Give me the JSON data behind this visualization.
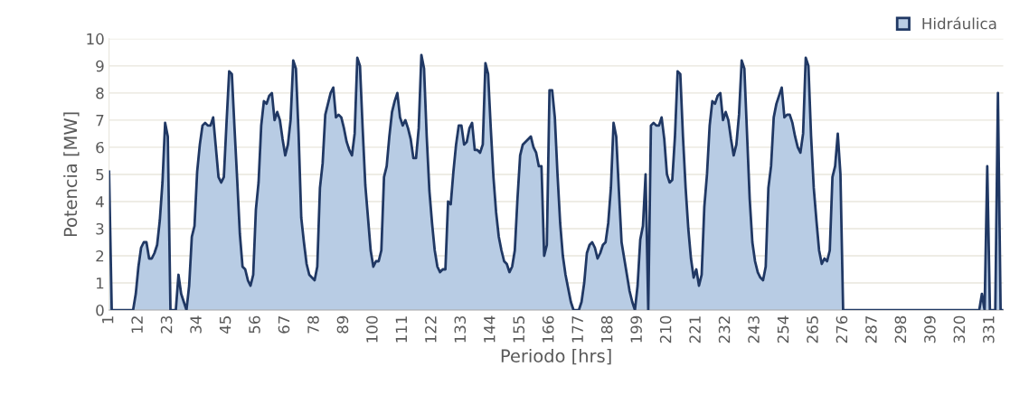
{
  "chart_data": {
    "type": "area",
    "xlabel": "Periodo [hrs]",
    "ylabel": "Potencia [MW]",
    "categories": [
      "1",
      null,
      null,
      null,
      null,
      null,
      null,
      null,
      null,
      null,
      null,
      "12",
      null,
      null,
      null,
      null,
      null,
      null,
      null,
      null,
      null,
      null,
      "23",
      null,
      null,
      null,
      null,
      null,
      null,
      null,
      null,
      null,
      null,
      "34",
      null,
      null,
      null,
      null,
      null,
      null,
      null,
      null,
      null,
      null,
      "45",
      null,
      null,
      null,
      null,
      null,
      null,
      null,
      null,
      null,
      null,
      "56",
      null,
      null,
      null,
      null,
      null,
      null,
      null,
      null,
      null,
      null,
      "67",
      null,
      null,
      null,
      null,
      null,
      null,
      null,
      null,
      null,
      null,
      "78",
      null,
      null,
      null,
      null,
      null,
      null,
      null,
      null,
      null,
      null,
      "89",
      null,
      null,
      null,
      null,
      null,
      null,
      null,
      null,
      null,
      null,
      "100",
      null,
      null,
      null,
      null,
      null,
      null,
      null,
      null,
      null,
      null,
      "111",
      null,
      null,
      null,
      null,
      null,
      null,
      null,
      null,
      null,
      null,
      "122",
      null,
      null,
      null,
      null,
      null,
      null,
      null,
      null,
      null,
      null,
      "133",
      null,
      null,
      null,
      null,
      null,
      null,
      null,
      null,
      null,
      null,
      "144",
      null,
      null,
      null,
      null,
      null,
      null,
      null,
      null,
      null,
      null,
      "155",
      null,
      null,
      null,
      null,
      null,
      null,
      null,
      null,
      null,
      null,
      "166",
      null,
      null,
      null,
      null,
      null,
      null,
      null,
      null,
      null,
      null,
      "177",
      null,
      null,
      null,
      null,
      null,
      null,
      null,
      null,
      null,
      null,
      "188",
      null,
      null,
      null,
      null,
      null,
      null,
      null,
      null,
      null,
      null,
      "199",
      null,
      null,
      null,
      null,
      null,
      null,
      null,
      null,
      null,
      null,
      "210",
      null,
      null,
      null,
      null,
      null,
      null,
      null,
      null,
      null,
      null,
      "221",
      null,
      null,
      null,
      null,
      null,
      null,
      null,
      null,
      null,
      null,
      "232",
      null,
      null,
      null,
      null,
      null,
      null,
      null,
      null,
      null,
      null,
      "243",
      null,
      null,
      null,
      null,
      null,
      null,
      null,
      null,
      null,
      null,
      "254",
      null,
      null,
      null,
      null,
      null,
      null,
      null,
      null,
      null,
      null,
      "265",
      null,
      null,
      null,
      null,
      null,
      null,
      null,
      null,
      null,
      null,
      "276",
      null,
      null,
      null,
      null,
      null,
      null,
      null,
      null,
      null,
      null,
      "287",
      null,
      null,
      null,
      null,
      null,
      null,
      null,
      null,
      null,
      null,
      "298",
      null,
      null,
      null,
      null,
      null,
      null,
      null,
      null,
      null,
      null,
      "309",
      null,
      null,
      null,
      null,
      null,
      null,
      null,
      null,
      null,
      null,
      "320",
      null,
      null,
      null,
      null,
      null,
      null,
      null,
      null,
      null,
      null,
      "331",
      null,
      null,
      null,
      null,
      null
    ],
    "series": [
      {
        "name": "Hidráulica",
        "color": "#b8cce4",
        "values": [
          5.1,
          0,
          0,
          0,
          0,
          0,
          0,
          0,
          0,
          0,
          0.6,
          1.6,
          2.3,
          2.5,
          2.5,
          1.9,
          1.9,
          2.1,
          2.4,
          3.3,
          4.7,
          6.9,
          6.4,
          0,
          0,
          0,
          1.3,
          0.6,
          0.3,
          0,
          0.9,
          2.7,
          3.1,
          5.1,
          6.1,
          6.8,
          6.9,
          6.8,
          6.8,
          7.1,
          6.0,
          4.9,
          4.7,
          4.9,
          6.9,
          8.8,
          8.7,
          6.7,
          4.8,
          2.8,
          1.6,
          1.5,
          1.1,
          0.9,
          1.3,
          3.7,
          4.7,
          6.8,
          7.7,
          7.6,
          7.9,
          8.0,
          7.0,
          7.3,
          7.0,
          6.3,
          5.7,
          6.1,
          7.0,
          9.2,
          8.9,
          6.5,
          3.4,
          2.5,
          1.7,
          1.3,
          1.2,
          1.1,
          1.6,
          4.5,
          5.4,
          7.2,
          7.6,
          8.0,
          8.2,
          7.1,
          7.2,
          7.1,
          6.7,
          6.2,
          5.9,
          5.7,
          6.5,
          9.3,
          9.0,
          6.7,
          4.6,
          3.4,
          2.2,
          1.6,
          1.8,
          1.8,
          2.2,
          4.9,
          5.3,
          6.4,
          7.3,
          7.7,
          8.0,
          7.1,
          6.8,
          7.0,
          6.7,
          6.3,
          5.6,
          5.6,
          6.7,
          9.4,
          8.9,
          6.4,
          4.4,
          3.2,
          2.2,
          1.6,
          1.4,
          1.5,
          1.5,
          4.0,
          3.9,
          5.1,
          6.1,
          6.8,
          6.8,
          6.1,
          6.2,
          6.7,
          6.9,
          5.9,
          5.9,
          5.8,
          6.1,
          9.1,
          8.7,
          6.7,
          4.9,
          3.6,
          2.7,
          2.2,
          1.8,
          1.7,
          1.4,
          1.6,
          2.2,
          4.1,
          5.7,
          6.1,
          6.2,
          6.3,
          6.4,
          6.0,
          5.8,
          5.3,
          5.3,
          2.0,
          2.4,
          8.1,
          8.1,
          7.1,
          5.0,
          3.2,
          2.0,
          1.3,
          0.8,
          0.3,
          0,
          0,
          0,
          0.3,
          1.0,
          2.1,
          2.4,
          2.5,
          2.3,
          1.9,
          2.1,
          2.4,
          2.5,
          3.2,
          4.5,
          6.9,
          6.4,
          4.4,
          2.5,
          1.9,
          1.3,
          0.7,
          0.3,
          0,
          0.9,
          2.6,
          3.1,
          5.0,
          0,
          6.8,
          6.9,
          6.8,
          6.8,
          7.1,
          6.3,
          5.0,
          4.7,
          4.8,
          6.4,
          8.8,
          8.7,
          6.4,
          4.5,
          3.0,
          1.9,
          1.2,
          1.5,
          0.9,
          1.3,
          3.8,
          5.0,
          6.8,
          7.7,
          7.6,
          7.9,
          8.0,
          7.0,
          7.3,
          7.0,
          6.3,
          5.7,
          6.1,
          7.2,
          9.2,
          8.9,
          6.5,
          4.1,
          2.5,
          1.8,
          1.4,
          1.2,
          1.1,
          1.6,
          4.5,
          5.3,
          7.1,
          7.6,
          7.9,
          8.2,
          7.1,
          7.2,
          7.2,
          6.9,
          6.4,
          6.0,
          5.8,
          6.5,
          9.3,
          9.0,
          6.4,
          4.5,
          3.3,
          2.2,
          1.7,
          1.9,
          1.8,
          2.2,
          4.9,
          5.3,
          6.5,
          5.0,
          0,
          0,
          0,
          0,
          0,
          0,
          0,
          0,
          0,
          0,
          0,
          0,
          0,
          0,
          0,
          0,
          0,
          0,
          0,
          0,
          0,
          0,
          0,
          0,
          0,
          0,
          0,
          0,
          0,
          0,
          0,
          0,
          0,
          0,
          0,
          0,
          0,
          0,
          0,
          0,
          0,
          0,
          0,
          0,
          0,
          0,
          0,
          0,
          0,
          0,
          0,
          0,
          0.6,
          0,
          5.3,
          0,
          0,
          0,
          8.0,
          0,
          0
        ]
      }
    ],
    "ylim": [
      0,
      10
    ],
    "yticks": [
      0,
      1,
      2,
      3,
      4,
      5,
      6,
      7,
      8,
      9,
      10
    ],
    "grid": "y",
    "legend": "top right"
  }
}
